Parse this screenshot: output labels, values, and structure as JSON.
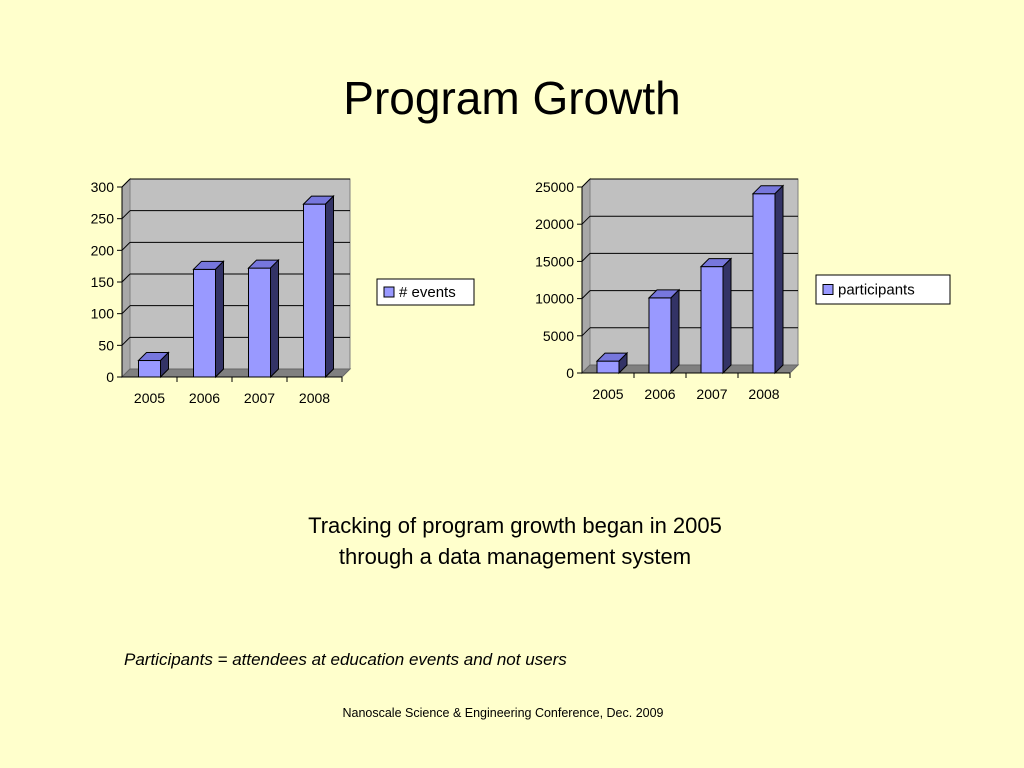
{
  "slide": {
    "title": "Program Growth",
    "caption_line1": "Tracking of program growth began in 2005",
    "caption_line2": "through a data management system",
    "note": "Participants = attendees at education events and not users",
    "footer": "Nanoscale Science & Engineering Conference, Dec. 2009"
  },
  "colors": {
    "background": "#ffffcc",
    "plot_area": "#c0c0c0",
    "bar_face": "#9999ff",
    "bar_top": "#7777dd",
    "bar_side": "#333366"
  },
  "chart_data": [
    {
      "type": "bar",
      "categories": [
        "2005",
        "2006",
        "2007",
        "2008"
      ],
      "series": [
        {
          "name": "# events",
          "values": [
            26,
            170,
            172,
            273
          ]
        }
      ],
      "ylim": [
        0,
        300
      ],
      "yticks": [
        0,
        50,
        100,
        150,
        200,
        250,
        300
      ],
      "grid": true,
      "legend": "right",
      "three_d": true
    },
    {
      "type": "bar",
      "categories": [
        "2005",
        "2006",
        "2007",
        "2008"
      ],
      "series": [
        {
          "name": "participants",
          "values": [
            1600,
            10100,
            14300,
            24100
          ]
        }
      ],
      "ylim": [
        0,
        25000
      ],
      "yticks": [
        0,
        5000,
        10000,
        15000,
        20000,
        25000
      ],
      "grid": true,
      "legend": "right",
      "three_d": true
    }
  ]
}
